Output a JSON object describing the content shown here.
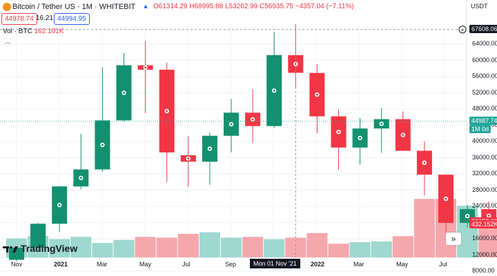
{
  "header": {
    "title": "Bitcoin / Tether US · 1M · WHITEBIT",
    "ohlc": "O61314.29 H68995.88 L53262.99 C56935.75 −4357.04 (−7.11%)",
    "sell_price": "44978.74",
    "spread": "16.21",
    "buy_price": "44994.95"
  },
  "volume": {
    "label": "Vol · BTC",
    "value": "162.101K"
  },
  "price_axis": {
    "currency": "USDT",
    "labels": [
      "64000.00",
      "60000.00",
      "56000.00",
      "52000.00",
      "48000.00",
      "44000.00",
      "40000.00",
      "36000.00",
      "32000.00",
      "28000.00",
      "24000.00",
      "16000.00",
      "12000.00",
      "8000.00"
    ],
    "crosshair_price": "67608.06",
    "last_price": "44987.74",
    "last_price_sub": "1M 0d",
    "price_tag_2": "20052.00",
    "volume_tag": "432.152K"
  },
  "time_axis": {
    "labels": [
      {
        "text": "Nov",
        "bold": false
      },
      {
        "text": "2021",
        "bold": true
      },
      {
        "text": "Mar",
        "bold": false
      },
      {
        "text": "May",
        "bold": false
      },
      {
        "text": "Jul",
        "bold": false
      },
      {
        "text": "Sep",
        "bold": false
      },
      {
        "text": "2022",
        "bold": true
      },
      {
        "text": "Mar",
        "bold": false
      },
      {
        "text": "May",
        "bold": false
      },
      {
        "text": "Jul",
        "bold": false
      }
    ],
    "crosshair_date": "Mon 01 Nov '21"
  },
  "branding": {
    "logo_text": "TradingView"
  },
  "colors": {
    "up": "#26a69a",
    "up_body": "#13906f",
    "down": "#f23645",
    "vol_up": "#9ed8cf",
    "vol_down": "#f5a8ac"
  },
  "chart_data": {
    "type": "candlestick",
    "y_range": [
      8000,
      68000
    ],
    "candles": [
      {
        "x": "Oct '20",
        "o": 10800,
        "h": 13900,
        "l": 10400,
        "c": 13800
      },
      {
        "x": "Nov '20",
        "o": 13800,
        "h": 19900,
        "l": 13200,
        "c": 19700
      },
      {
        "x": "Dec '20",
        "o": 19700,
        "h": 29000,
        "l": 17600,
        "c": 28900
      },
      {
        "x": "Jan '21",
        "o": 28900,
        "h": 41900,
        "l": 28200,
        "c": 33100
      },
      {
        "x": "Feb '21",
        "o": 33100,
        "h": 58300,
        "l": 32500,
        "c": 45200
      },
      {
        "x": "Mar '21",
        "o": 45200,
        "h": 61800,
        "l": 45000,
        "c": 58800
      },
      {
        "x": "Apr '21",
        "o": 58800,
        "h": 64800,
        "l": 47000,
        "c": 57700
      },
      {
        "x": "May '21",
        "o": 57700,
        "h": 59500,
        "l": 30000,
        "c": 37300
      },
      {
        "x": "Jun '21",
        "o": 36600,
        "h": 41300,
        "l": 28800,
        "c": 35000
      },
      {
        "x": "Jul '21",
        "o": 35000,
        "h": 42200,
        "l": 29300,
        "c": 41400
      },
      {
        "x": "Aug '21",
        "o": 41400,
        "h": 50500,
        "l": 37300,
        "c": 47100
      },
      {
        "x": "Sep '21",
        "o": 47100,
        "h": 52900,
        "l": 39600,
        "c": 43800
      },
      {
        "x": "Oct '21",
        "o": 43800,
        "h": 67000,
        "l": 43300,
        "c": 61300
      },
      {
        "x": "Nov '21",
        "o": 61300,
        "h": 68996,
        "l": 53263,
        "c": 56936
      },
      {
        "x": "Dec '21",
        "o": 56900,
        "h": 59000,
        "l": 42000,
        "c": 46200
      },
      {
        "x": "Jan '22",
        "o": 46200,
        "h": 47900,
        "l": 33000,
        "c": 38500
      },
      {
        "x": "Feb '22",
        "o": 38500,
        "h": 45800,
        "l": 34300,
        "c": 43200
      },
      {
        "x": "Mar '22",
        "o": 43200,
        "h": 48200,
        "l": 37200,
        "c": 45500
      },
      {
        "x": "Apr '22",
        "o": 45500,
        "h": 47400,
        "l": 37700,
        "c": 37700
      },
      {
        "x": "May '22",
        "o": 37700,
        "h": 40000,
        "l": 26700,
        "c": 31800
      },
      {
        "x": "Jun '22",
        "o": 31800,
        "h": 31900,
        "l": 17600,
        "c": 19900
      },
      {
        "x": "Jul '22",
        "o": 19900,
        "h": 24300,
        "l": 18800,
        "c": 23300
      },
      {
        "x": "Aug '22",
        "o": 23300,
        "h": 25200,
        "l": 19600,
        "c": 20052
      }
    ],
    "volume": [
      0.25,
      0.28,
      0.24,
      0.27,
      0.19,
      0.23,
      0.27,
      0.26,
      0.31,
      0.33,
      0.26,
      0.27,
      0.24,
      0.26,
      0.32,
      0.18,
      0.2,
      0.21,
      0.28,
      0.77,
      0.77,
      0.68,
      0.44
    ],
    "volume_ylim": [
      0,
      1
    ]
  }
}
